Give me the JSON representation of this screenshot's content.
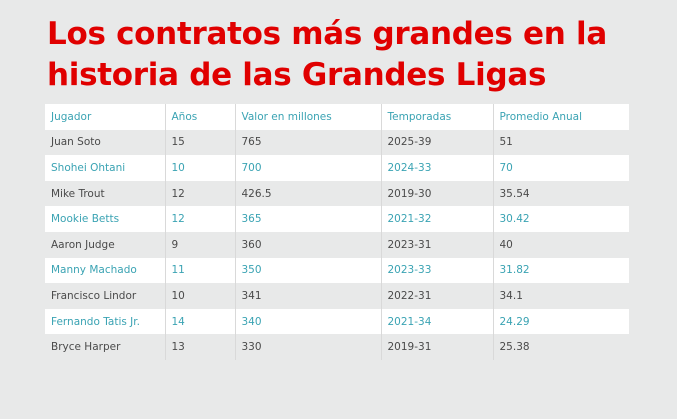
{
  "title": "Los contratos más grandes en la historia de las Grandes Ligas",
  "colors": {
    "title": "#e00000",
    "accent": "#3aa3b3",
    "background": "#e8e9e9",
    "row_alt": "#ffffff",
    "text": "#4a4a4a"
  },
  "table": {
    "headers": [
      "Jugador",
      "Años",
      "Valor en millones",
      "Temporadas",
      "Promedio Anual"
    ],
    "rows": [
      [
        "Juan Soto",
        "15",
        "765",
        "2025-39",
        "51"
      ],
      [
        "Shohei Ohtani",
        "10",
        "700",
        "2024-33",
        "70"
      ],
      [
        "Mike Trout",
        "12",
        "426.5",
        "2019-30",
        "35.54"
      ],
      [
        "Mookie Betts",
        "12",
        "365",
        "2021-32",
        "30.42"
      ],
      [
        "Aaron Judge",
        "9",
        "360",
        "2023-31",
        "40"
      ],
      [
        "Manny Machado",
        "11",
        "350",
        "2023-33",
        "31.82"
      ],
      [
        "Francisco Lindor",
        "10",
        "341",
        "2022-31",
        "34.1"
      ],
      [
        "Fernando Tatis Jr.",
        "14",
        "340",
        "2021-34",
        "24.29"
      ],
      [
        "Bryce Harper",
        "13",
        "330",
        "2019-31",
        "25.38"
      ]
    ]
  }
}
